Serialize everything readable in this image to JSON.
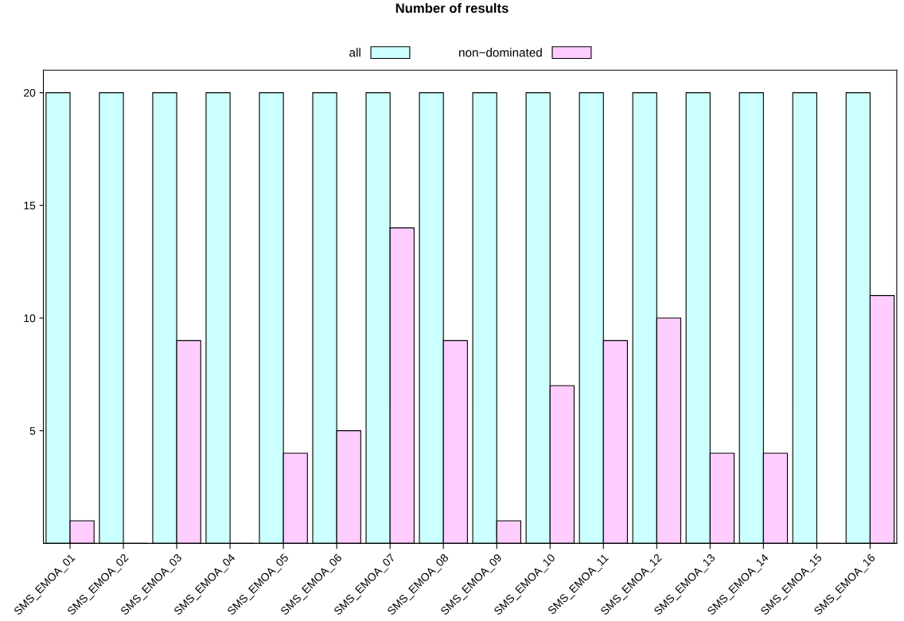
{
  "chart_data": {
    "type": "bar",
    "title": "Number of results",
    "categories": [
      "SMS_EMOA_01",
      "SMS_EMOA_02",
      "SMS_EMOA_03",
      "SMS_EMOA_04",
      "SMS_EMOA_05",
      "SMS_EMOA_06",
      "SMS_EMOA_07",
      "SMS_EMOA_08",
      "SMS_EMOA_09",
      "SMS_EMOA_10",
      "SMS_EMOA_11",
      "SMS_EMOA_12",
      "SMS_EMOA_13",
      "SMS_EMOA_14",
      "SMS_EMOA_15",
      "SMS_EMOA_16"
    ],
    "series": [
      {
        "name": "all",
        "color": "#ccffff",
        "values": [
          20,
          20,
          20,
          20,
          20,
          20,
          20,
          20,
          20,
          20,
          20,
          20,
          20,
          20,
          20,
          20
        ]
      },
      {
        "name": "non−dominated",
        "color": "#ffccff",
        "values": [
          1,
          0,
          9,
          0,
          4,
          5,
          14,
          9,
          1,
          7,
          9,
          10,
          4,
          4,
          0,
          11
        ]
      }
    ],
    "ylim": [
      0,
      21
    ],
    "yticks": [
      5,
      10,
      15,
      20
    ],
    "grid": false,
    "legend": "top"
  }
}
